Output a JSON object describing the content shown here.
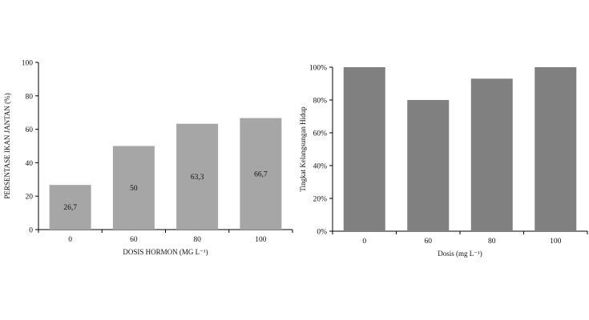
{
  "chart_data": [
    {
      "type": "bar",
      "categories": [
        "0",
        "60",
        "80",
        "100"
      ],
      "values": [
        26.7,
        50,
        63.3,
        66.7
      ],
      "data_labels": [
        "26,7",
        "50",
        "63,3",
        "66,7"
      ],
      "xlabel": "DOSIS HORMON (MG L⁻¹)",
      "ylabel": "PERSENTASE IKAN JANTAN (%)",
      "ylim": [
        0,
        100
      ],
      "yticks": [
        "0",
        "20",
        "40",
        "60",
        "80",
        "100"
      ],
      "bar_color": "#a6a6a6",
      "grid": false
    },
    {
      "type": "bar",
      "categories": [
        "0",
        "60",
        "80",
        "100"
      ],
      "values": [
        100,
        80,
        93,
        100
      ],
      "xlabel": "Dosis (mg L⁻¹)",
      "ylabel": "Tingkat Kelangsungan Hidup",
      "ylim": [
        0,
        100
      ],
      "yticks": [
        "0%",
        "20%",
        "40%",
        "60%",
        "80%",
        "100%"
      ],
      "bar_color": "#808080",
      "grid": false
    }
  ]
}
